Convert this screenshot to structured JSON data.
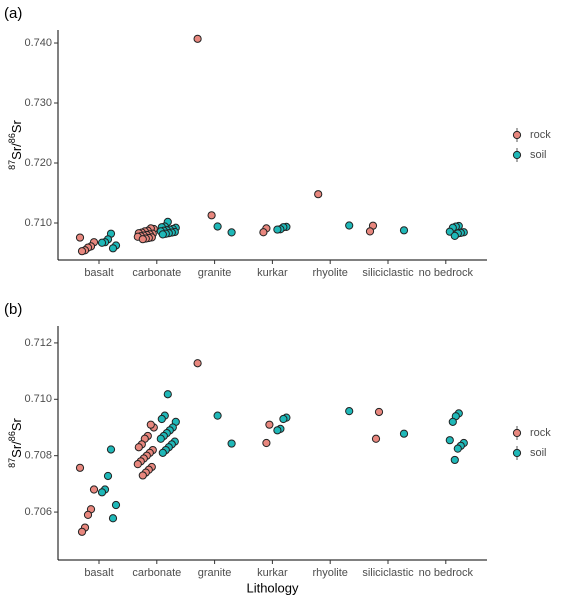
{
  "chart_data": [
    {
      "type": "strip",
      "panel_label": "(a)",
      "categories": [
        "basalt",
        "carbonate",
        "granite",
        "kurkar",
        "rhyolite",
        "siliciclastic",
        "no bedrock"
      ],
      "ylabel_parts": [
        "87",
        "Sr/",
        "86",
        "Sr"
      ],
      "ylim": [
        0.70383,
        0.74217
      ],
      "yticks": [
        {
          "value": 0.71,
          "label": "0.710"
        },
        {
          "value": 0.72,
          "label": "0.720"
        },
        {
          "value": 0.73,
          "label": "0.730"
        },
        {
          "value": 0.74,
          "label": "0.740"
        }
      ],
      "legend": "right",
      "series": [
        {
          "name": "rock",
          "color": "#E8877E",
          "x": [
            "basalt",
            "basalt",
            "basalt",
            "basalt",
            "basalt",
            "basalt",
            "carbonate",
            "carbonate",
            "carbonate",
            "carbonate",
            "carbonate",
            "carbonate",
            "carbonate",
            "carbonate",
            "carbonate",
            "carbonate",
            "carbonate",
            "carbonate",
            "carbonate",
            "carbonate",
            "carbonate",
            "carbonate",
            "granite",
            "granite",
            "kurkar",
            "kurkar",
            "rhyolite",
            "siliciclastic",
            "siliciclastic"
          ],
          "values": [
            0.70757,
            0.7068,
            0.7061,
            0.7059,
            0.70545,
            0.7053,
            0.709,
            0.7091,
            0.7087,
            0.7086,
            0.7084,
            0.7083,
            0.7082,
            0.7081,
            0.708,
            0.7079,
            0.7078,
            0.7077,
            0.7076,
            0.7075,
            0.7074,
            0.7073,
            0.7407,
            0.71128,
            0.7091,
            0.70845,
            0.7148,
            0.70955,
            0.7086
          ]
        },
        {
          "name": "soil",
          "color": "#1FB8B8",
          "x": [
            "basalt",
            "basalt",
            "basalt",
            "basalt",
            "basalt",
            "basalt",
            "carbonate",
            "carbonate",
            "carbonate",
            "carbonate",
            "carbonate",
            "carbonate",
            "carbonate",
            "carbonate",
            "carbonate",
            "carbonate",
            "carbonate",
            "carbonate",
            "carbonate",
            "carbonate",
            "granite",
            "granite",
            "kurkar",
            "kurkar",
            "kurkar",
            "kurkar",
            "rhyolite",
            "siliciclastic",
            "no bedrock",
            "no bedrock",
            "no bedrock",
            "no bedrock",
            "no bedrock",
            "no bedrock",
            "no bedrock",
            "no bedrock"
          ],
          "values": [
            0.70822,
            0.70728,
            0.7068,
            0.7067,
            0.70625,
            0.70578,
            0.71018,
            0.70942,
            0.7093,
            0.7092,
            0.709,
            0.7089,
            0.7088,
            0.7087,
            0.7086,
            0.7085,
            0.7084,
            0.7083,
            0.7082,
            0.7081,
            0.70942,
            0.70843,
            0.70935,
            0.7093,
            0.70895,
            0.7089,
            0.70958,
            0.70878,
            0.7095,
            0.7094,
            0.7092,
            0.70855,
            0.70845,
            0.70835,
            0.70825,
            0.70785
          ]
        }
      ]
    },
    {
      "type": "strip",
      "panel_label": "(b)",
      "xlabel": "Lithology",
      "categories": [
        "basalt",
        "carbonate",
        "granite",
        "kurkar",
        "rhyolite",
        "siliciclastic",
        "no bedrock"
      ],
      "ylabel_parts": [
        "87",
        "Sr/",
        "86",
        "Sr"
      ],
      "ylim": [
        0.7043,
        0.7126
      ],
      "yticks": [
        {
          "value": 0.706,
          "label": "0.706"
        },
        {
          "value": 0.708,
          "label": "0.708"
        },
        {
          "value": 0.71,
          "label": "0.710"
        },
        {
          "value": 0.712,
          "label": "0.712"
        }
      ],
      "legend": "right",
      "series": [
        {
          "name": "rock",
          "color": "#E8877E",
          "x": [
            "basalt",
            "basalt",
            "basalt",
            "basalt",
            "basalt",
            "basalt",
            "carbonate",
            "carbonate",
            "carbonate",
            "carbonate",
            "carbonate",
            "carbonate",
            "carbonate",
            "carbonate",
            "carbonate",
            "carbonate",
            "carbonate",
            "carbonate",
            "carbonate",
            "carbonate",
            "carbonate",
            "carbonate",
            "granite",
            "kurkar",
            "kurkar",
            "siliciclastic",
            "siliciclastic"
          ],
          "values": [
            0.70757,
            0.7068,
            0.7061,
            0.7059,
            0.70545,
            0.7053,
            0.709,
            0.7091,
            0.7087,
            0.7086,
            0.7084,
            0.7083,
            0.7082,
            0.7081,
            0.708,
            0.7079,
            0.7078,
            0.7077,
            0.7076,
            0.7075,
            0.7074,
            0.7073,
            0.71128,
            0.7091,
            0.70845,
            0.70955,
            0.7086
          ]
        },
        {
          "name": "soil",
          "color": "#1FB8B8",
          "x": [
            "basalt",
            "basalt",
            "basalt",
            "basalt",
            "basalt",
            "basalt",
            "carbonate",
            "carbonate",
            "carbonate",
            "carbonate",
            "carbonate",
            "carbonate",
            "carbonate",
            "carbonate",
            "carbonate",
            "carbonate",
            "carbonate",
            "carbonate",
            "carbonate",
            "carbonate",
            "granite",
            "granite",
            "kurkar",
            "kurkar",
            "kurkar",
            "kurkar",
            "rhyolite",
            "siliciclastic",
            "no bedrock",
            "no bedrock",
            "no bedrock",
            "no bedrock",
            "no bedrock",
            "no bedrock",
            "no bedrock",
            "no bedrock"
          ],
          "values": [
            0.70822,
            0.70728,
            0.7068,
            0.7067,
            0.70625,
            0.70578,
            0.71018,
            0.70942,
            0.7093,
            0.7092,
            0.709,
            0.7089,
            0.7088,
            0.7087,
            0.7086,
            0.7085,
            0.7084,
            0.7083,
            0.7082,
            0.7081,
            0.70942,
            0.70843,
            0.70935,
            0.7093,
            0.70895,
            0.7089,
            0.70958,
            0.70878,
            0.7095,
            0.7094,
            0.7092,
            0.70855,
            0.70845,
            0.70835,
            0.70825,
            0.70785
          ]
        }
      ]
    }
  ]
}
